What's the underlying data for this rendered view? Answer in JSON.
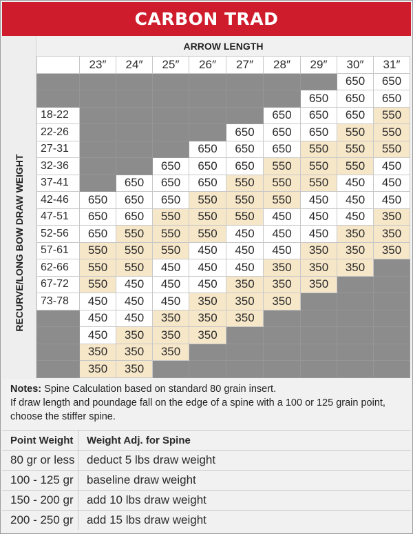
{
  "title": "CARBON TRAD",
  "axis": {
    "arrow_length": "ARROW LENGTH",
    "draw_weight": "RECURVE/LONG BOW DRAW WEIGHT"
  },
  "columns": [
    "23″",
    "24″",
    "25″",
    "26″",
    "27″",
    "28″",
    "29″",
    "30″",
    "31″"
  ],
  "rows": [
    {
      "label": "",
      "cells": [
        "",
        "",
        "",
        "",
        "",
        "",
        "",
        "650",
        "650"
      ]
    },
    {
      "label": "",
      "cells": [
        "",
        "",
        "",
        "",
        "",
        "",
        "650",
        "650",
        "650"
      ]
    },
    {
      "label": "18-22",
      "cells": [
        "",
        "",
        "",
        "",
        "",
        "650",
        "650",
        "650",
        "550"
      ]
    },
    {
      "label": "22-26",
      "cells": [
        "",
        "",
        "",
        "",
        "650",
        "650",
        "650",
        "550",
        "550"
      ]
    },
    {
      "label": "27-31",
      "cells": [
        "",
        "",
        "",
        "650",
        "650",
        "650",
        "550",
        "550",
        "550"
      ]
    },
    {
      "label": "32-36",
      "cells": [
        "",
        "",
        "650",
        "650",
        "650",
        "550",
        "550",
        "550",
        "450"
      ]
    },
    {
      "label": "37-41",
      "cells": [
        "",
        "650",
        "650",
        "650",
        "550",
        "550",
        "550",
        "450",
        "450"
      ]
    },
    {
      "label": "42-46",
      "cells": [
        "650",
        "650",
        "650",
        "550",
        "550",
        "550",
        "450",
        "450",
        "450"
      ]
    },
    {
      "label": "47-51",
      "cells": [
        "650",
        "650",
        "550",
        "550",
        "550",
        "450",
        "450",
        "450",
        "350"
      ]
    },
    {
      "label": "52-56",
      "cells": [
        "650",
        "550",
        "550",
        "550",
        "450",
        "450",
        "450",
        "350",
        "350"
      ]
    },
    {
      "label": "57-61",
      "cells": [
        "550",
        "550",
        "550",
        "450",
        "450",
        "450",
        "350",
        "350",
        "350"
      ]
    },
    {
      "label": "62-66",
      "cells": [
        "550",
        "550",
        "450",
        "450",
        "450",
        "350",
        "350",
        "350",
        ""
      ]
    },
    {
      "label": "67-72",
      "cells": [
        "550",
        "450",
        "450",
        "450",
        "350",
        "350",
        "350",
        "",
        ""
      ]
    },
    {
      "label": "73-78",
      "cells": [
        "450",
        "450",
        "450",
        "350",
        "350",
        "350",
        "",
        "",
        ""
      ]
    },
    {
      "label": "",
      "cells": [
        "450",
        "450",
        "350",
        "350",
        "350",
        "",
        "",
        "",
        ""
      ]
    },
    {
      "label": "",
      "cells": [
        "450",
        "350",
        "350",
        "350",
        "",
        "",
        "",
        "",
        ""
      ]
    },
    {
      "label": "",
      "cells": [
        "350",
        "350",
        "350",
        "",
        "",
        "",
        "",
        "",
        ""
      ]
    },
    {
      "label": "",
      "cells": [
        "350",
        "350",
        "",
        "",
        "",
        "",
        "",
        "",
        ""
      ]
    }
  ],
  "empty_rowlabel_rows": [
    0,
    1,
    14,
    15,
    16,
    17
  ],
  "notes": {
    "label": "Notes:",
    "line1": " Spine Calculation based on standard 80 grain insert.",
    "line2": "If draw length and poundage fall on the edge of a spine with a 100 or 125 grain point, choose the stiffer spine."
  },
  "point_table": {
    "header": [
      "Point Weight",
      "Weight Adj. for Spine"
    ],
    "rows": [
      [
        "80 gr or less",
        "deduct 5 lbs draw weight"
      ],
      [
        "100 - 125 gr",
        "baseline draw weight"
      ],
      [
        "150 - 200 gr",
        "add 10 lbs draw weight"
      ],
      [
        "200 - 250 gr",
        "add 15 lbs draw weight"
      ]
    ]
  },
  "colors": {
    "title_red": "#cf1c2c",
    "spine_tan": "#f7e7c9",
    "empty_gray": "#8c8c8c"
  }
}
